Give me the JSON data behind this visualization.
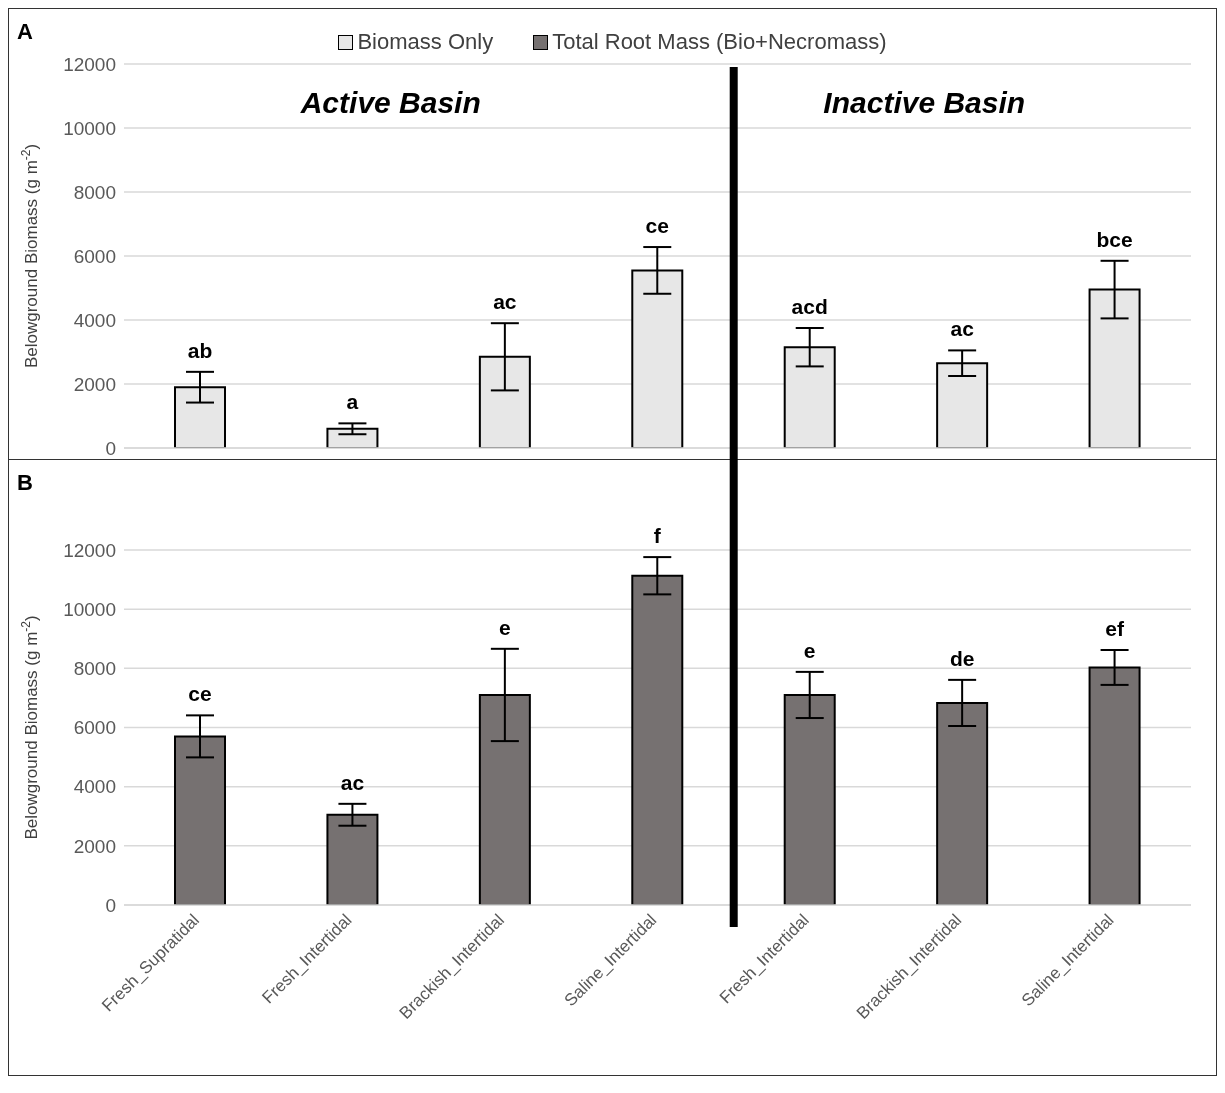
{
  "chart_data": [
    {
      "type": "bar",
      "ylabel": "Belowground Biomass (g m$^{-2}$)",
      "categories": [
        null,
        null,
        null,
        null,
        null,
        null,
        null
      ],
      "tick_labels": "y",
      "ylim": [
        0,
        12000
      ],
      "yticks": [
        0,
        2000,
        4000,
        6000,
        8000,
        10000,
        12000
      ],
      "grid": "y",
      "legend": "top",
      "annotations": [
        "A",
        "Active Basin",
        "Inactive Basin"
      ],
      "series": [
        {
          "name": "Biomass Only",
          "color": "#e7e7e7",
          "values": [
            1900,
            600,
            2850,
            5550,
            3150,
            2650,
            4950
          ],
          "errors": [
            480,
            170,
            1050,
            730,
            600,
            400,
            900
          ],
          "value_labels": [
            "ab",
            "a",
            "ac",
            "ce",
            "acd",
            "ac",
            "bce"
          ]
        }
      ]
    },
    {
      "type": "bar",
      "ylabel": "Belowground Biomass (g m$^{-2}$)",
      "categories": [
        "Fresh_Supratidal",
        "Fresh_Intertidal",
        "Brackish_Intertidal",
        "Saline_Intertidal",
        "Fresh_Intertidal",
        "Brackish_Intertidal",
        "Saline_Intertidal"
      ],
      "ylim": [
        0,
        12000
      ],
      "yticks": [
        0,
        2000,
        4000,
        6000,
        8000,
        10000,
        12000
      ],
      "grid": "y",
      "legend": "top",
      "annotations": [
        "B"
      ],
      "series": [
        {
          "name": "Total Root Mass (Bio+Necromass)",
          "color": "#767171",
          "values": [
            5700,
            3050,
            7100,
            11130,
            7100,
            6830,
            8030
          ],
          "errors": [
            710,
            370,
            1560,
            630,
            780,
            780,
            590
          ],
          "value_labels": [
            "ce",
            "ac",
            "e",
            "f",
            "e",
            "de",
            "ef"
          ]
        }
      ]
    }
  ]
}
